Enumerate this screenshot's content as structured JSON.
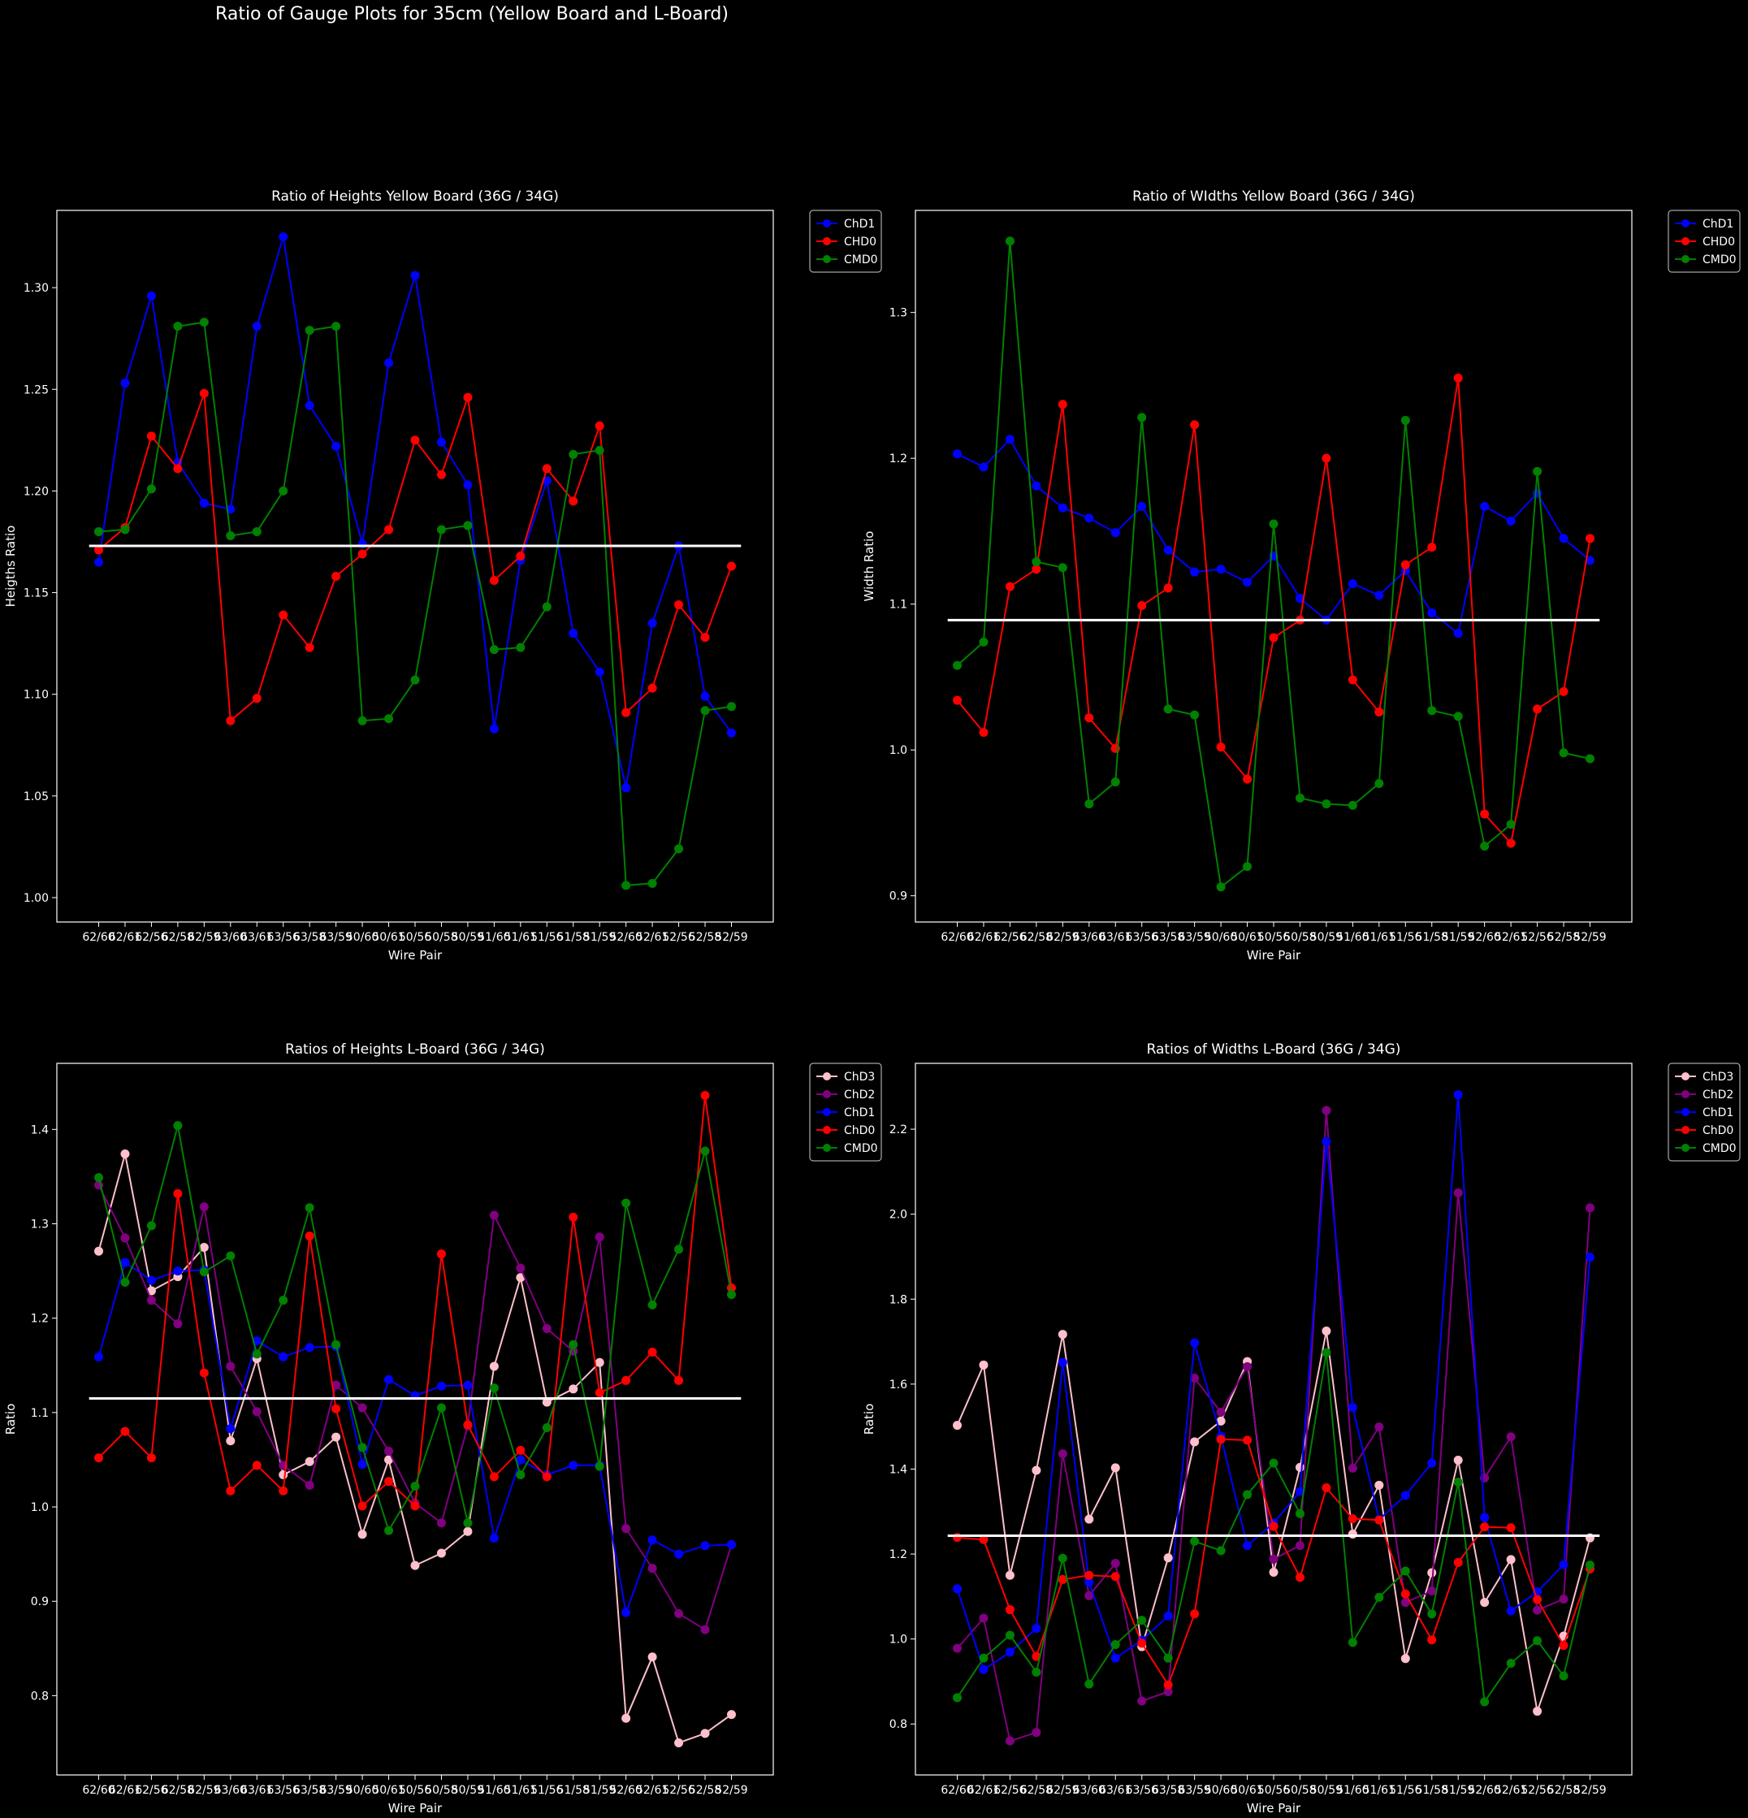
{
  "suptitle": "Ratio of Gauge Plots for 35cm (Yellow Board and L-Board)",
  "colors": {
    "background": "#000000",
    "foreground": "#ffffff",
    "ChD3": "#ffc0cb",
    "ChD2": "#800080",
    "ChD1": "#0000ff",
    "ChD0": "#ff0000",
    "CHD0": "#ff0000",
    "CMD0": "#008000",
    "reference_line": "#ffffff"
  },
  "chart_data": [
    {
      "type": "line",
      "title": "Ratio of Heights Yellow Board (36G / 34G)",
      "xlabel": "Wire Pair",
      "ylabel": "Heigths Ratio",
      "ylim": [
        0.988,
        1.338
      ],
      "yticks": [
        1.0,
        1.05,
        1.1,
        1.15,
        1.2,
        1.25,
        1.3
      ],
      "ytick_labels": [
        "1.00",
        "1.05",
        "1.10",
        "1.15",
        "1.20",
        "1.25",
        "1.30"
      ],
      "categories": [
        "62/60",
        "62/61",
        "62/56",
        "62/58",
        "62/59",
        "63/60",
        "63/61",
        "63/56",
        "63/58",
        "63/59",
        "50/60",
        "50/61",
        "50/56",
        "50/58",
        "50/59",
        "51/60",
        "51/61",
        "51/56",
        "51/58",
        "51/59",
        "52/60",
        "52/61",
        "52/56",
        "52/58",
        "52/59"
      ],
      "reference_line": 1.173,
      "legend_position": "outside-right-top",
      "series": [
        {
          "name": "ChD1",
          "color": "#0000ff",
          "values": [
            1.165,
            1.253,
            1.296,
            1.214,
            1.194,
            1.191,
            1.281,
            1.325,
            1.242,
            1.222,
            1.174,
            1.263,
            1.306,
            1.224,
            1.203,
            1.083,
            1.166,
            1.205,
            1.13,
            1.111,
            1.054,
            1.135,
            1.173,
            1.099,
            1.081
          ]
        },
        {
          "name": "CHD0",
          "color": "#ff0000",
          "values": [
            1.171,
            1.182,
            1.227,
            1.211,
            1.248,
            1.087,
            1.098,
            1.139,
            1.123,
            1.158,
            1.169,
            1.181,
            1.225,
            1.208,
            1.246,
            1.156,
            1.168,
            1.211,
            1.195,
            1.232,
            1.091,
            1.103,
            1.144,
            1.128,
            1.163
          ]
        },
        {
          "name": "CMD0",
          "color": "#008000",
          "values": [
            1.18,
            1.181,
            1.201,
            1.281,
            1.283,
            1.178,
            1.18,
            1.2,
            1.279,
            1.281,
            1.087,
            1.088,
            1.107,
            1.181,
            1.183,
            1.122,
            1.123,
            1.143,
            1.218,
            1.22,
            1.006,
            1.007,
            1.024,
            1.092,
            1.094
          ]
        }
      ]
    },
    {
      "type": "line",
      "title": "Ratio of WIdths Yellow Board (36G / 34G)",
      "xlabel": "Wire Pair",
      "ylabel": "Width Ratio",
      "ylim": [
        0.882,
        1.37
      ],
      "yticks": [
        0.9,
        1.0,
        1.1,
        1.2,
        1.3
      ],
      "ytick_labels": [
        "0.9",
        "1.0",
        "1.1",
        "1.2",
        "1.3"
      ],
      "categories": [
        "62/60",
        "62/61",
        "62/56",
        "62/58",
        "62/59",
        "63/60",
        "63/61",
        "63/56",
        "63/58",
        "63/59",
        "50/60",
        "50/61",
        "50/56",
        "50/58",
        "50/59",
        "51/60",
        "51/61",
        "51/56",
        "51/58",
        "51/59",
        "52/60",
        "52/61",
        "52/56",
        "52/58",
        "52/59"
      ],
      "reference_line": 1.089,
      "legend_position": "outside-right-top",
      "series": [
        {
          "name": "ChD1",
          "color": "#0000ff",
          "values": [
            1.203,
            1.194,
            1.213,
            1.181,
            1.166,
            1.159,
            1.149,
            1.167,
            1.137,
            1.122,
            1.124,
            1.115,
            1.133,
            1.104,
            1.089,
            1.114,
            1.106,
            1.123,
            1.094,
            1.08,
            1.167,
            1.157,
            1.176,
            1.145,
            1.13
          ]
        },
        {
          "name": "CHD0",
          "color": "#ff0000",
          "values": [
            1.034,
            1.012,
            1.112,
            1.124,
            1.237,
            1.022,
            1.001,
            1.099,
            1.111,
            1.223,
            1.002,
            0.98,
            1.077,
            1.089,
            1.2,
            1.048,
            1.026,
            1.127,
            1.139,
            1.255,
            0.956,
            0.936,
            1.028,
            1.04,
            1.145
          ]
        },
        {
          "name": "CMD0",
          "color": "#008000",
          "values": [
            1.058,
            1.074,
            1.349,
            1.129,
            1.125,
            0.963,
            0.978,
            1.228,
            1.028,
            1.024,
            0.906,
            0.92,
            1.155,
            0.967,
            0.963,
            0.962,
            0.977,
            1.226,
            1.027,
            1.023,
            0.934,
            0.949,
            1.191,
            0.998,
            0.994
          ]
        }
      ]
    },
    {
      "type": "line",
      "title": "Ratios of Heights L-Board (36G / 34G)",
      "xlabel": "Wire Pair",
      "ylabel": "Ratio",
      "ylim": [
        0.716,
        1.47
      ],
      "yticks": [
        0.8,
        0.9,
        1.0,
        1.1,
        1.2,
        1.3,
        1.4
      ],
      "ytick_labels": [
        "0.8",
        "0.9",
        "1.0",
        "1.1",
        "1.2",
        "1.3",
        "1.4"
      ],
      "categories": [
        "62/60",
        "62/61",
        "62/56",
        "62/58",
        "62/59",
        "63/60",
        "63/61",
        "63/56",
        "63/58",
        "63/59",
        "50/60",
        "50/61",
        "50/56",
        "50/58",
        "50/59",
        "51/60",
        "51/61",
        "51/56",
        "51/58",
        "51/59",
        "52/60",
        "52/61",
        "52/56",
        "52/58",
        "52/59"
      ],
      "reference_line": 1.115,
      "legend_position": "outside-right-top",
      "series": [
        {
          "name": "ChD3",
          "color": "#ffc0cb",
          "values": [
            1.271,
            1.374,
            1.229,
            1.244,
            1.275,
            1.07,
            1.157,
            1.034,
            1.048,
            1.074,
            0.971,
            1.05,
            0.938,
            0.951,
            0.974,
            1.149,
            1.243,
            1.111,
            1.125,
            1.153,
            0.776,
            0.841,
            0.75,
            0.76,
            0.78
          ]
        },
        {
          "name": "ChD2",
          "color": "#800080",
          "values": [
            1.341,
            1.285,
            1.219,
            1.194,
            1.318,
            1.149,
            1.101,
            1.044,
            1.023,
            1.129,
            1.105,
            1.059,
            1.004,
            0.983,
            1.086,
            1.309,
            1.253,
            1.189,
            1.165,
            1.286,
            0.977,
            0.935,
            0.887,
            0.87,
            0.96
          ]
        },
        {
          "name": "ChD1",
          "color": "#0000ff",
          "values": [
            1.159,
            1.259,
            1.24,
            1.25,
            1.251,
            1.083,
            1.176,
            1.159,
            1.169,
            1.17,
            1.045,
            1.135,
            1.118,
            1.128,
            1.129,
            0.967,
            1.05,
            1.034,
            1.044,
            1.044,
            0.888,
            0.965,
            0.95,
            0.959,
            0.96
          ]
        },
        {
          "name": "ChD0",
          "color": "#ff0000",
          "values": [
            1.052,
            1.08,
            1.052,
            1.332,
            1.142,
            1.017,
            1.044,
            1.017,
            1.287,
            1.104,
            1.001,
            1.027,
            1.001,
            1.268,
            1.087,
            1.032,
            1.06,
            1.032,
            1.307,
            1.121,
            1.134,
            1.164,
            1.134,
            1.436,
            1.232
          ]
        },
        {
          "name": "CMD0",
          "color": "#008000",
          "values": [
            1.349,
            1.238,
            1.298,
            1.404,
            1.249,
            1.266,
            1.162,
            1.219,
            1.317,
            1.172,
            1.063,
            0.975,
            1.022,
            1.105,
            0.983,
            1.126,
            1.034,
            1.084,
            1.172,
            1.043,
            1.322,
            1.214,
            1.273,
            1.377,
            1.225
          ]
        }
      ]
    },
    {
      "type": "line",
      "title": "Ratios of Widths L-Board (36G / 34G)",
      "xlabel": "Wire Pair",
      "ylabel": "Ratio",
      "ylim": [
        0.68,
        2.355
      ],
      "yticks": [
        0.8,
        1.0,
        1.2,
        1.4,
        1.6,
        1.8,
        2.0,
        2.2
      ],
      "ytick_labels": [
        "0.8",
        "1.0",
        "1.2",
        "1.4",
        "1.6",
        "1.8",
        "2.0",
        "2.2"
      ],
      "categories": [
        "62/60",
        "62/61",
        "62/56",
        "62/58",
        "62/59",
        "63/60",
        "63/61",
        "63/56",
        "63/58",
        "63/59",
        "50/60",
        "50/61",
        "50/56",
        "50/58",
        "50/59",
        "51/60",
        "51/61",
        "51/56",
        "51/58",
        "51/59",
        "52/60",
        "52/61",
        "52/56",
        "52/58",
        "52/59"
      ],
      "reference_line": 1.243,
      "legend_position": "outside-right-top",
      "series": [
        {
          "name": "ChD3",
          "color": "#ffc0cb",
          "values": [
            1.503,
            1.645,
            1.15,
            1.397,
            1.717,
            1.282,
            1.403,
            0.982,
            1.191,
            1.464,
            1.513,
            1.653,
            1.157,
            1.404,
            1.725,
            1.247,
            1.362,
            0.954,
            1.156,
            1.421,
            1.086,
            1.187,
            0.83,
            1.007,
            1.238
          ]
        },
        {
          "name": "ChD2",
          "color": "#800080",
          "values": [
            0.978,
            1.049,
            0.76,
            0.78,
            1.436,
            1.102,
            1.178,
            0.854,
            0.876,
            1.614,
            1.534,
            1.641,
            1.188,
            1.22,
            2.244,
            1.402,
            1.499,
            1.086,
            1.113,
            2.05,
            1.379,
            1.476,
            1.068,
            1.094,
            2.015
          ]
        },
        {
          "name": "ChD1",
          "color": "#0000ff",
          "values": [
            1.118,
            0.928,
            0.969,
            1.025,
            1.651,
            1.133,
            0.955,
            0.997,
            1.054,
            1.697,
            1.477,
            1.22,
            1.273,
            1.347,
            2.171,
            1.545,
            1.281,
            1.338,
            1.414,
            2.281,
            1.286,
            1.066,
            1.111,
            1.175,
            1.899
          ]
        },
        {
          "name": "ChD0",
          "color": "#ff0000",
          "values": [
            1.239,
            1.234,
            1.069,
            0.959,
            1.14,
            1.15,
            1.147,
            0.99,
            0.892,
            1.059,
            1.47,
            1.468,
            1.265,
            1.145,
            1.356,
            1.283,
            1.28,
            1.106,
            0.998,
            1.18,
            1.264,
            1.262,
            1.093,
            0.985,
            1.165
          ]
        },
        {
          "name": "CMD0",
          "color": "#008000",
          "values": [
            0.862,
            0.955,
            1.009,
            0.922,
            1.19,
            0.894,
            0.987,
            1.044,
            0.955,
            1.23,
            1.208,
            1.34,
            1.414,
            1.295,
            1.674,
            0.992,
            1.098,
            1.16,
            1.059,
            1.369,
            0.852,
            0.943,
            0.996,
            0.913,
            1.174
          ]
        }
      ]
    }
  ]
}
